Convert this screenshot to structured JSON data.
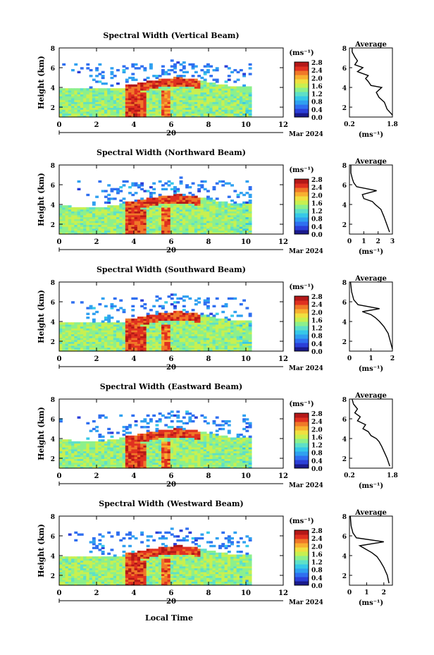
{
  "figure": {
    "xlabel": "Local Time",
    "date_label": "Mar 2024",
    "day_label": "20",
    "cbar_unit": "(ms⁻¹)",
    "avg_title": "Average",
    "avg_unit": "(ms⁻¹)",
    "y_label": "Height (km)"
  },
  "colormap": [
    "#1a1a8c",
    "#2b3fd8",
    "#2f6ff0",
    "#2fa0f0",
    "#36c8e8",
    "#5ee0c8",
    "#8cf08c",
    "#c8f050",
    "#f0e040",
    "#f8b030",
    "#f07828",
    "#e03020",
    "#b41818"
  ],
  "chart_data": [
    {
      "type": "heatmap",
      "title": "Spectral Width (Vertical Beam)",
      "xlim": [
        0,
        12
      ],
      "ylim": [
        1,
        8
      ],
      "x_ticks": [
        0,
        2,
        4,
        6,
        8,
        10,
        12
      ],
      "y_ticks": [
        2,
        4,
        6,
        8
      ],
      "colorbar": {
        "min": 0,
        "max": 2.8,
        "ticks": [
          "2.8",
          "2.4",
          "2.0",
          "1.6",
          "1.2",
          "0.8",
          "0.4",
          "0.0"
        ]
      },
      "average_profile": {
        "xlim": [
          0.2,
          1.8
        ],
        "x_ticks": [
          0.2,
          1.8
        ],
        "x_tick_labels": [
          "0.2",
          "1.8"
        ],
        "ylim": [
          1,
          8
        ],
        "y_ticks": [
          2,
          4,
          6,
          8
        ],
        "x": [
          1.8,
          1.6,
          1.5,
          1.3,
          1.2,
          1.4,
          1.0,
          0.9,
          0.8,
          0.9,
          0.5,
          0.7,
          0.4,
          0.5,
          0.4,
          0.3,
          0.3
        ],
        "y": [
          1.2,
          1.8,
          2.5,
          3.0,
          3.5,
          4.0,
          4.2,
          4.6,
          4.9,
          5.2,
          5.6,
          6.0,
          6.3,
          6.7,
          7.1,
          7.6,
          8.0
        ]
      }
    },
    {
      "type": "heatmap",
      "title": "Spectral Width (Northward Beam)",
      "xlim": [
        0,
        12
      ],
      "ylim": [
        1,
        8
      ],
      "x_ticks": [
        0,
        2,
        4,
        6,
        8,
        10,
        12
      ],
      "y_ticks": [
        2,
        4,
        6,
        8
      ],
      "colorbar": {
        "min": 0,
        "max": 2.8,
        "ticks": [
          "2.8",
          "2.4",
          "2.0",
          "1.6",
          "1.2",
          "0.8",
          "0.4",
          "0.0"
        ]
      },
      "average_profile": {
        "xlim": [
          0,
          3
        ],
        "x_ticks": [
          0,
          1,
          2,
          3
        ],
        "x_tick_labels": [
          "0",
          "1",
          "2",
          "3"
        ],
        "ylim": [
          1,
          8
        ],
        "y_ticks": [
          2,
          4,
          6,
          8
        ],
        "x": [
          2.8,
          2.6,
          2.4,
          2.2,
          1.8,
          1.6,
          1.0,
          0.9,
          1.9,
          0.5,
          0.3,
          0.2,
          0.1,
          0.1
        ],
        "y": [
          1.2,
          2.0,
          2.8,
          3.5,
          4.0,
          4.3,
          4.6,
          5.0,
          5.4,
          5.8,
          6.2,
          6.6,
          7.2,
          8.0
        ]
      }
    },
    {
      "type": "heatmap",
      "title": "Spectral Width (Southward Beam)",
      "xlim": [
        0,
        12
      ],
      "ylim": [
        1,
        8
      ],
      "x_ticks": [
        0,
        2,
        4,
        6,
        8,
        10,
        12
      ],
      "y_ticks": [
        2,
        4,
        6,
        8
      ],
      "colorbar": {
        "min": 0,
        "max": 2.8,
        "ticks": [
          "2.8",
          "2.4",
          "2.0",
          "1.6",
          "1.2",
          "0.8",
          "0.4",
          "0.0"
        ]
      },
      "average_profile": {
        "xlim": [
          0,
          2
        ],
        "x_ticks": [
          0,
          1,
          2
        ],
        "x_tick_labels": [
          "0",
          "1",
          "2"
        ],
        "ylim": [
          1,
          8
        ],
        "y_ticks": [
          2,
          4,
          6,
          8
        ],
        "x": [
          2.0,
          1.9,
          1.8,
          1.6,
          1.4,
          1.2,
          1.0,
          0.6,
          1.4,
          0.4,
          0.2,
          0.1,
          0.05
        ],
        "y": [
          1.2,
          2.0,
          2.8,
          3.5,
          4.0,
          4.4,
          4.7,
          5.0,
          5.3,
          5.7,
          6.2,
          7.0,
          8.0
        ]
      }
    },
    {
      "type": "heatmap",
      "title": "Spectral Width (Eastward Beam)",
      "xlim": [
        0,
        12
      ],
      "ylim": [
        1,
        8
      ],
      "x_ticks": [
        0,
        2,
        4,
        6,
        8,
        10,
        12
      ],
      "y_ticks": [
        2,
        4,
        6,
        8
      ],
      "colorbar": {
        "min": 0,
        "max": 2.8,
        "ticks": [
          "2.8",
          "2.4",
          "2.0",
          "1.6",
          "1.2",
          "0.8",
          "0.4",
          "0.0"
        ]
      },
      "average_profile": {
        "xlim": [
          0.2,
          1.8
        ],
        "x_ticks": [
          0.2,
          1.8
        ],
        "x_tick_labels": [
          "0.2",
          "1.8"
        ],
        "ylim": [
          1,
          8
        ],
        "y_ticks": [
          2,
          4,
          6,
          8
        ],
        "x": [
          1.7,
          1.6,
          1.5,
          1.4,
          1.3,
          1.2,
          1.0,
          0.9,
          0.7,
          0.8,
          0.5,
          0.6,
          0.4,
          0.5,
          0.35,
          0.3
        ],
        "y": [
          1.2,
          2.0,
          2.6,
          3.2,
          3.7,
          4.0,
          4.3,
          4.7,
          5.0,
          5.4,
          5.8,
          6.2,
          6.6,
          7.0,
          7.5,
          8.0
        ]
      }
    },
    {
      "type": "heatmap",
      "title": "Spectral Width (Westward Beam)",
      "xlim": [
        0,
        12
      ],
      "ylim": [
        1,
        8
      ],
      "x_ticks": [
        0,
        2,
        4,
        6,
        8,
        10,
        12
      ],
      "y_ticks": [
        2,
        4,
        6,
        8
      ],
      "colorbar": {
        "min": 0,
        "max": 2.8,
        "ticks": [
          "2.8",
          "2.4",
          "2.0",
          "1.6",
          "1.2",
          "0.8",
          "0.4",
          "0.0"
        ]
      },
      "average_profile": {
        "xlim": [
          0,
          2.5
        ],
        "x_ticks": [
          0,
          1,
          2
        ],
        "x_tick_labels": [
          "0",
          "1",
          "2"
        ],
        "ylim": [
          1,
          8
        ],
        "y_ticks": [
          2,
          4,
          6,
          8
        ],
        "x": [
          2.3,
          2.2,
          2.0,
          1.8,
          1.6,
          1.3,
          1.0,
          0.6,
          2.0,
          0.4,
          0.2,
          0.1,
          0.05
        ],
        "y": [
          1.2,
          2.0,
          2.8,
          3.4,
          3.9,
          4.3,
          4.6,
          5.0,
          5.4,
          5.8,
          6.3,
          7.0,
          8.0
        ]
      }
    }
  ]
}
